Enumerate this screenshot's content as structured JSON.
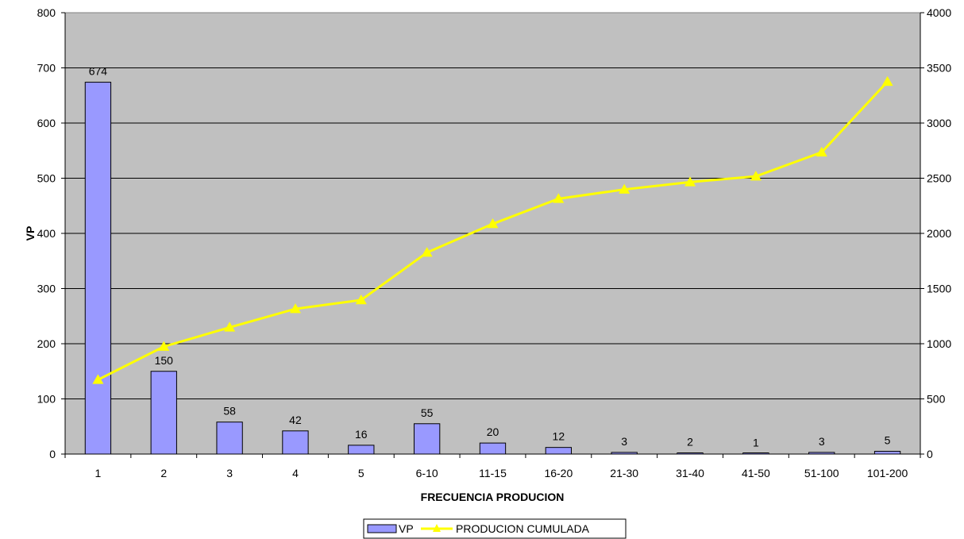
{
  "chart_data": {
    "type": "bar",
    "title": "",
    "xlabel": "FRECUENCIA PRODUCION",
    "ylabel": "VP",
    "y2label": "",
    "categories": [
      "1",
      "2",
      "3",
      "4",
      "5",
      "6-10",
      "11-15",
      "16-20",
      "21-30",
      "31-40",
      "41-50",
      "51-100",
      "101-200"
    ],
    "series": [
      {
        "name": "VP",
        "type": "bar",
        "axis": "left",
        "color": "#9999ff",
        "values": [
          674,
          150,
          58,
          42,
          16,
          55,
          20,
          12,
          3,
          2,
          1,
          3,
          5
        ],
        "data_labels": true
      },
      {
        "name": "PRODUCION CUMULADA",
        "type": "line",
        "axis": "right",
        "color": "#ffff00",
        "marker": "triangle",
        "values": [
          674,
          974,
          1148,
          1316,
          1396,
          1826,
          2086,
          2314,
          2398,
          2465,
          2517,
          2735,
          3375
        ],
        "data_labels": false
      }
    ],
    "ylim": [
      0,
      800
    ],
    "yticks": [
      0,
      100,
      200,
      300,
      400,
      500,
      600,
      700,
      800
    ],
    "y2lim": [
      0,
      4000
    ],
    "y2ticks": [
      0,
      500,
      1000,
      1500,
      2000,
      2500,
      3000,
      3500,
      4000
    ],
    "grid": true,
    "legend_position": "bottom",
    "plot_background": "#c0c0c0"
  }
}
